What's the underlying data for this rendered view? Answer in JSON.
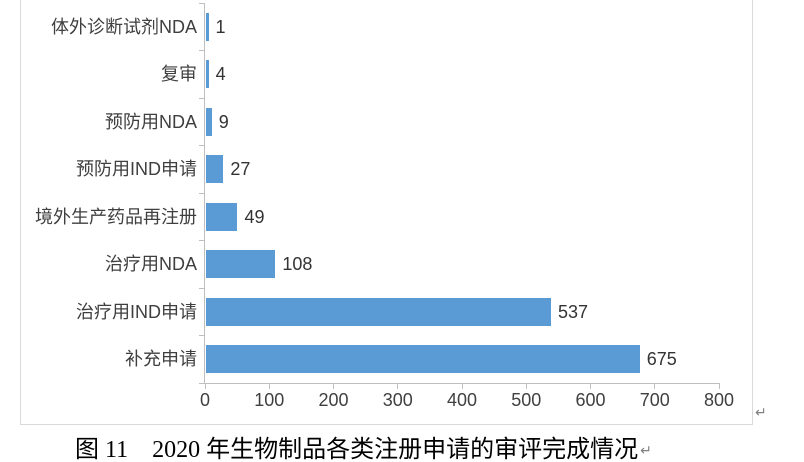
{
  "chart_data": {
    "type": "bar",
    "orientation": "horizontal",
    "title": "图 11　2020 年生物制品各类注册申请的审评完成情况",
    "categories": [
      "体外诊断试剂NDA",
      "复审",
      "预防用NDA",
      "预防用IND申请",
      "境外生产药品再注册",
      "治疗用NDA",
      "治疗用IND申请",
      "补充申请"
    ],
    "values": [
      1,
      4,
      9,
      27,
      49,
      108,
      537,
      675
    ],
    "data_labels": [
      "1",
      "4",
      "9",
      "27",
      "49",
      "108",
      "537",
      "675"
    ],
    "xlim": [
      0,
      800
    ],
    "x_ticks": [
      0,
      100,
      200,
      300,
      400,
      500,
      600,
      700,
      800
    ],
    "grid": false,
    "legend": false,
    "bar_color": "#5b9bd5",
    "axis_color": "#bfbfbf",
    "label_color": "#404040"
  },
  "caption": {
    "text": "图 11　2020 年生物制品各类注册申请的审评完成情况"
  },
  "marks": {
    "chart_paragraph_mark": "↵",
    "caption_paragraph_mark": "↵"
  }
}
